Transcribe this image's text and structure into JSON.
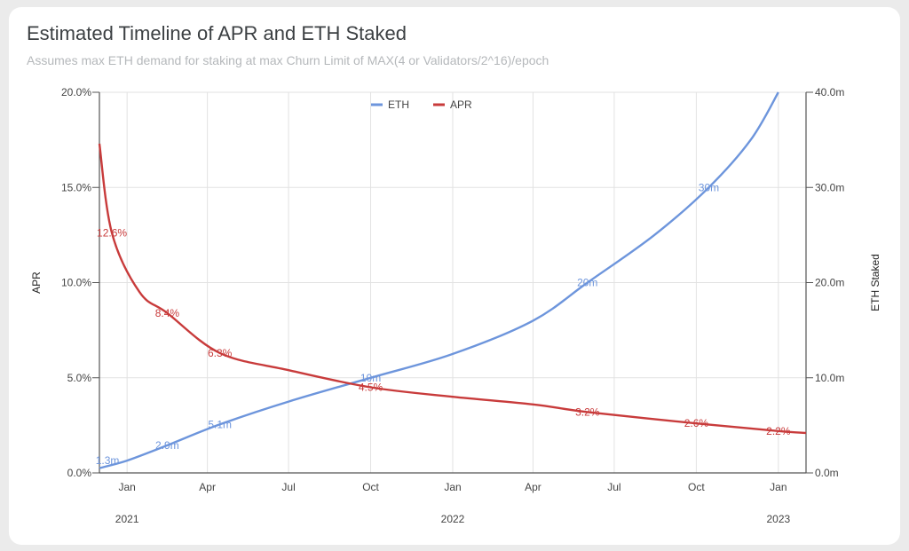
{
  "title": "Estimated Timeline of APR and ETH Staked",
  "subtitle": "Assumes max ETH demand for staking at max Churn Limit of MAX(4 or Validators/2^16)/epoch",
  "colors": {
    "eth": "#6d95dc",
    "apr": "#c83b3b",
    "grid": "#e2e2e2",
    "axis": "#555555"
  },
  "chart_data": {
    "type": "line",
    "title": "Estimated Timeline of APR and ETH Staked",
    "subtitle": "Assumes max ETH demand for staking at max Churn Limit of MAX(4 or Validators/2^16)/epoch",
    "x_axis": {
      "type": "date",
      "range": [
        "2020-12-01",
        "2023-02-01"
      ],
      "tick_labels": [
        "Jan",
        "Apr",
        "Jul",
        "Oct",
        "Jan",
        "Apr",
        "Jul",
        "Oct",
        "Jan"
      ],
      "tick_dates": [
        "2021-01-01",
        "2021-04-01",
        "2021-07-01",
        "2021-10-01",
        "2022-01-01",
        "2022-04-01",
        "2022-07-01",
        "2022-10-01",
        "2023-01-01"
      ],
      "year_labels": [
        "2021",
        "2022",
        "2023"
      ]
    },
    "y_left": {
      "label": "APR",
      "range": [
        0,
        20
      ],
      "ticks": [
        0,
        5,
        10,
        15,
        20
      ],
      "tick_labels": [
        "0.0%",
        "5.0%",
        "10.0%",
        "15.0%",
        "20.0%"
      ]
    },
    "y_right": {
      "label": "ETH Staked",
      "range": [
        0,
        40
      ],
      "ticks": [
        0,
        10,
        20,
        30,
        40
      ],
      "tick_labels": [
        "0.0m",
        "10.0m",
        "20.0m",
        "30.0m",
        "40.0m"
      ]
    },
    "legend": {
      "position": "top-center",
      "entries": [
        "ETH",
        "APR"
      ]
    },
    "grid": true,
    "series": [
      {
        "name": "ETH",
        "axis": "right",
        "unit": "m",
        "points": [
          [
            "2020-12-01",
            0.5
          ],
          [
            "2021-01-01",
            1.3
          ],
          [
            "2021-02-15",
            2.9
          ],
          [
            "2021-04-15",
            5.1
          ],
          [
            "2021-07-01",
            7.5
          ],
          [
            "2021-10-01",
            10.0
          ],
          [
            "2022-01-01",
            12.5
          ],
          [
            "2022-04-01",
            16.0
          ],
          [
            "2022-06-01",
            20.0
          ],
          [
            "2022-08-15",
            25.0
          ],
          [
            "2022-10-15",
            30.0
          ],
          [
            "2022-12-01",
            35.0
          ],
          [
            "2023-01-01",
            40.0
          ]
        ],
        "labels": [
          {
            "date": "2020-12-10",
            "value": 1.3,
            "text": "1.3m"
          },
          {
            "date": "2021-02-15",
            "value": 2.9,
            "text": "2.9m"
          },
          {
            "date": "2021-04-15",
            "value": 5.1,
            "text": "5.1m"
          },
          {
            "date": "2021-10-01",
            "value": 10.0,
            "text": "10m"
          },
          {
            "date": "2022-06-01",
            "value": 20.0,
            "text": "20m"
          },
          {
            "date": "2022-10-15",
            "value": 30.0,
            "text": "30m"
          }
        ]
      },
      {
        "name": "APR",
        "axis": "left",
        "unit": "%",
        "points": [
          [
            "2020-12-01",
            17.3
          ],
          [
            "2020-12-15",
            12.6
          ],
          [
            "2021-01-15",
            9.5
          ],
          [
            "2021-02-15",
            8.4
          ],
          [
            "2021-04-15",
            6.3
          ],
          [
            "2021-07-01",
            5.4
          ],
          [
            "2021-10-01",
            4.5
          ],
          [
            "2022-01-01",
            4.0
          ],
          [
            "2022-04-01",
            3.6
          ],
          [
            "2022-06-01",
            3.2
          ],
          [
            "2022-10-01",
            2.6
          ],
          [
            "2023-01-01",
            2.2
          ],
          [
            "2023-02-01",
            2.1
          ]
        ],
        "labels": [
          {
            "date": "2020-12-15",
            "value": 12.6,
            "text": "12.6%"
          },
          {
            "date": "2021-02-15",
            "value": 8.4,
            "text": "8.4%"
          },
          {
            "date": "2021-04-15",
            "value": 6.3,
            "text": "6.3%"
          },
          {
            "date": "2021-10-01",
            "value": 4.5,
            "text": "4.5%"
          },
          {
            "date": "2022-06-01",
            "value": 3.2,
            "text": "3.2%"
          },
          {
            "date": "2022-10-01",
            "value": 2.6,
            "text": "2.6%"
          },
          {
            "date": "2023-01-01",
            "value": 2.2,
            "text": "2.2%"
          }
        ]
      }
    ]
  }
}
